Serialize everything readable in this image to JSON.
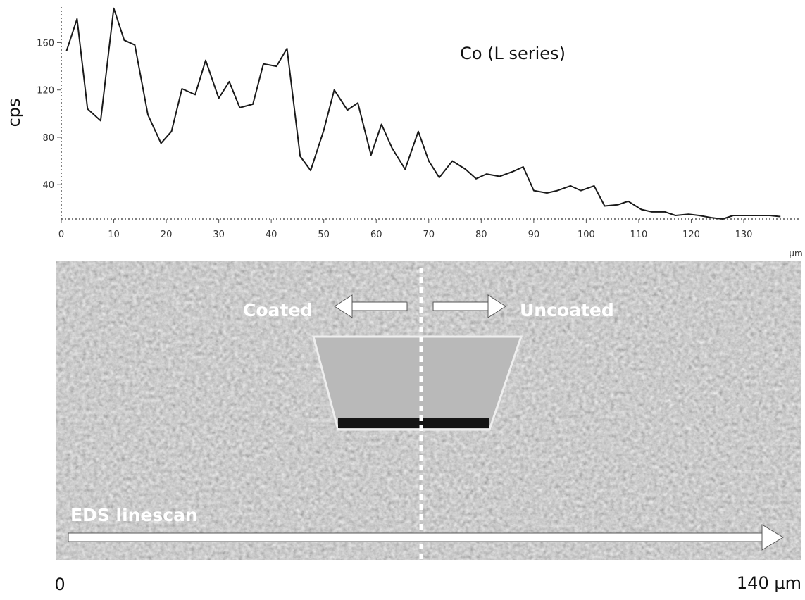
{
  "chart_data": {
    "type": "line",
    "title": "Co (L series)",
    "y_label": "cps",
    "x_label": "μm",
    "color": "#1a1a1a",
    "x": [
      1,
      3,
      5,
      7.5,
      10,
      12,
      14,
      16.5,
      19,
      21,
      23,
      25.5,
      27.5,
      30,
      32,
      34,
      36.5,
      38.5,
      41,
      43,
      45.5,
      47.5,
      50,
      52,
      54.5,
      56.5,
      59,
      61,
      63,
      65.5,
      68,
      70,
      72,
      74.5,
      77,
      79,
      81,
      83.5,
      86,
      88,
      90,
      92.5,
      94.5,
      97,
      99,
      101.5,
      103.5,
      106,
      108,
      110.5,
      112.5,
      115,
      117,
      119.5,
      121.5,
      124,
      126,
      128,
      130.5,
      133,
      135,
      137
    ],
    "values": [
      153,
      180,
      104,
      94,
      189,
      162,
      158,
      99,
      75,
      85,
      121,
      116,
      145,
      113,
      127,
      105,
      108,
      142,
      140,
      155,
      64,
      52,
      86,
      120,
      103,
      109,
      65,
      91,
      71,
      53,
      85,
      60,
      46,
      60,
      53,
      45,
      49,
      47,
      51,
      55,
      35,
      33,
      35,
      39,
      35,
      39,
      22,
      23,
      26,
      19,
      17,
      17,
      14,
      15,
      14,
      12,
      11,
      14,
      14,
      14,
      14,
      13
    ],
    "xlim": [
      0,
      141
    ],
    "ylim": [
      11,
      190
    ],
    "xticks": [
      0,
      10,
      20,
      30,
      40,
      50,
      60,
      70,
      80,
      90,
      100,
      110,
      120,
      130
    ],
    "yticks": [
      40,
      80,
      120,
      160
    ]
  },
  "image": {
    "left_label": "Coated",
    "right_label": "Uncoated",
    "scan_label": "EDS linescan",
    "scale_start": "0",
    "scale_end": "140 μm"
  }
}
